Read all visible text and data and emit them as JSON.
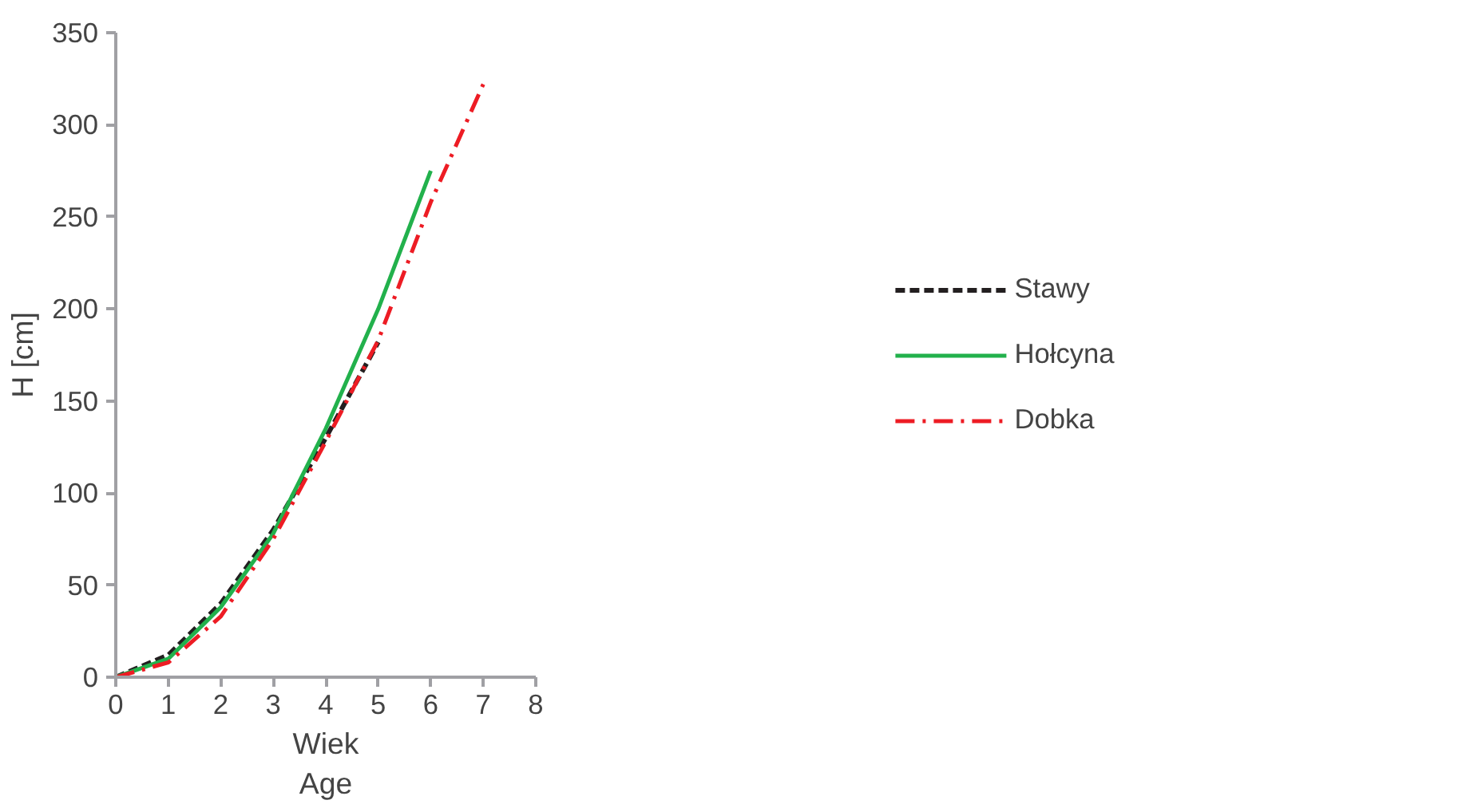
{
  "chart_data": {
    "type": "line",
    "xlabel": "Wiek\nAge",
    "ylabel": "H [cm]",
    "x": [
      0,
      1,
      2,
      3,
      4,
      5,
      6,
      7
    ],
    "series": [
      {
        "name": "Stawy",
        "color": "#231f20",
        "line_style": "dashed",
        "values": [
          0,
          12,
          40,
          80,
          130,
          182,
          null,
          null
        ]
      },
      {
        "name": "Hołcyna",
        "color": "#22b14c",
        "line_style": "solid",
        "values": [
          0,
          10,
          38,
          78,
          135,
          200,
          275,
          null
        ]
      },
      {
        "name": "Dobka",
        "color": "#ed1c24",
        "line_style": "dashdot",
        "values": [
          0,
          8,
          33,
          75,
          128,
          183,
          258,
          322
        ]
      }
    ],
    "xlim": [
      0,
      8
    ],
    "xticks": [
      0,
      1,
      2,
      3,
      4,
      5,
      6,
      7,
      8
    ],
    "ylim": [
      0,
      350
    ],
    "yticks": [
      0,
      50,
      100,
      150,
      200,
      250,
      300,
      350
    ],
    "grid": false,
    "legend": "right",
    "marker": "none"
  }
}
